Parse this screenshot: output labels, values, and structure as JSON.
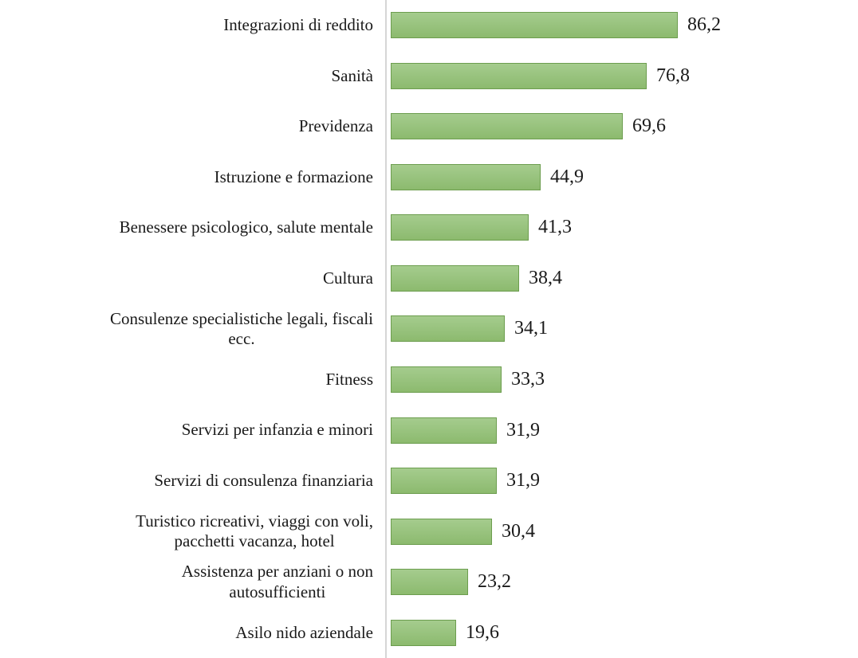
{
  "chart_data": {
    "type": "bar",
    "orientation": "horizontal",
    "title": "",
    "xlabel": "",
    "ylabel": "",
    "xlim": [
      0,
      100
    ],
    "grid": false,
    "legend": null,
    "value_label_format": "comma-decimal",
    "categories": [
      "Integrazioni di reddito",
      "Sanità",
      "Previdenza",
      "Istruzione e formazione",
      "Benessere psicologico, salute mentale",
      "Cultura",
      "Consulenze specialistiche legali, fiscali ecc.",
      "Fitness",
      "Servizi per infanzia e minori",
      "Servizi di consulenza finanziaria",
      "Turistico ricreativi, viaggi con voli, pacchetti vacanza, hotel",
      "Assistenza per anziani o non autosufficienti",
      "Asilo nido aziendale"
    ],
    "values": [
      86.2,
      76.8,
      69.6,
      44.9,
      41.3,
      38.4,
      34.1,
      33.3,
      31.9,
      31.9,
      30.4,
      23.2,
      19.6
    ],
    "items": [
      {
        "label_lines": [
          "Integrazioni di reddito"
        ],
        "value": 86.2,
        "display": "86,2"
      },
      {
        "label_lines": [
          "Sanità"
        ],
        "value": 76.8,
        "display": "76,8"
      },
      {
        "label_lines": [
          "Previdenza"
        ],
        "value": 69.6,
        "display": "69,6"
      },
      {
        "label_lines": [
          "Istruzione e formazione"
        ],
        "value": 44.9,
        "display": "44,9"
      },
      {
        "label_lines": [
          "Benessere psicologico, salute mentale"
        ],
        "value": 41.3,
        "display": "41,3"
      },
      {
        "label_lines": [
          "Cultura"
        ],
        "value": 38.4,
        "display": "38,4"
      },
      {
        "label_lines": [
          "Consulenze specialistiche legali, fiscali",
          "ecc."
        ],
        "value": 34.1,
        "display": "34,1"
      },
      {
        "label_lines": [
          "Fitness"
        ],
        "value": 33.3,
        "display": "33,3"
      },
      {
        "label_lines": [
          "Servizi per infanzia e minori"
        ],
        "value": 31.9,
        "display": "31,9"
      },
      {
        "label_lines": [
          "Servizi di consulenza finanziaria"
        ],
        "value": 31.9,
        "display": "31,9"
      },
      {
        "label_lines": [
          "Turistico ricreativi, viaggi con voli,",
          "pacchetti vacanza, hotel"
        ],
        "value": 30.4,
        "display": "30,4"
      },
      {
        "label_lines": [
          "Assistenza per anziani o non",
          "autosufficienti"
        ],
        "value": 23.2,
        "display": "23,2"
      },
      {
        "label_lines": [
          "Asilo nido aziendale"
        ],
        "value": 19.6,
        "display": "19,6"
      }
    ]
  },
  "colors": {
    "bar_fill_top": "#a5cc8e",
    "bar_fill_bottom": "#8cba6e",
    "bar_border": "#6c9d4e",
    "axis_line": "#d6d6d6",
    "text": "#1a1a1a",
    "background": "#ffffff"
  }
}
